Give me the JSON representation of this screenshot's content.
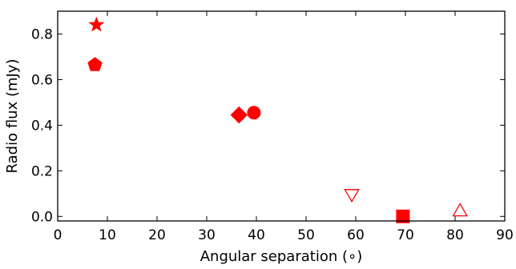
{
  "chart_data": {
    "type": "scatter",
    "title": "",
    "xlabel": "Angular separation (∘)",
    "ylabel": "Radio flux (mJy)",
    "xlim": [
      0,
      90
    ],
    "ylim": [
      -0.02,
      0.9
    ],
    "x_ticks": [
      0,
      10,
      20,
      30,
      40,
      50,
      60,
      70,
      80,
      90
    ],
    "x_tick_labels": [
      "0",
      "10",
      "20",
      "30",
      "40",
      "50",
      "60",
      "70",
      "80",
      "90"
    ],
    "y_ticks": [
      0.0,
      0.2,
      0.4,
      0.6,
      0.8
    ],
    "y_tick_labels": [
      "0.0",
      "0.2",
      "0.4",
      "0.6",
      "0.8"
    ],
    "grid": false,
    "legend": "none",
    "marker_color": "#ff0000",
    "points": [
      {
        "x": 7.8,
        "y": 0.84,
        "marker": "star",
        "filled": true
      },
      {
        "x": 7.5,
        "y": 0.665,
        "marker": "pentagon",
        "filled": true
      },
      {
        "x": 36.5,
        "y": 0.445,
        "marker": "diamond",
        "filled": true
      },
      {
        "x": 39.5,
        "y": 0.455,
        "marker": "circle",
        "filled": true
      },
      {
        "x": 59.2,
        "y": 0.1,
        "marker": "triangle-down",
        "filled": false
      },
      {
        "x": 69.5,
        "y": 0.0,
        "marker": "square",
        "filled": true
      },
      {
        "x": 81.0,
        "y": 0.02,
        "marker": "triangle-up",
        "filled": false
      }
    ]
  }
}
